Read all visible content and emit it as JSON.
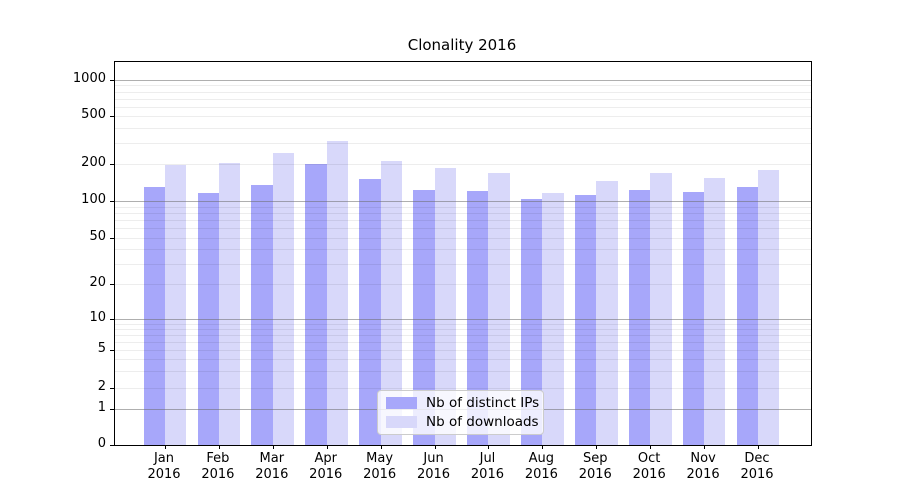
{
  "chart_data": {
    "type": "bar",
    "title": "Clonality 2016",
    "categories": [
      "Jan",
      "Feb",
      "Mar",
      "Apr",
      "May",
      "Jun",
      "Jul",
      "Aug",
      "Sep",
      "Oct",
      "Nov",
      "Dec"
    ],
    "category_year": "2016",
    "series": [
      {
        "name": "Nb of distinct IPs",
        "color": "#a7a7fa",
        "values": [
          130,
          117,
          135,
          199,
          151,
          124,
          121,
          103,
          111,
          122,
          118,
          129
        ]
      },
      {
        "name": "Nb of downloads",
        "color": "#d8d8fa",
        "values": [
          196,
          205,
          248,
          310,
          211,
          185,
          170,
          117,
          145,
          170,
          154,
          179
        ]
      }
    ],
    "xlabel": "",
    "ylabel": "",
    "yscale": "symlog",
    "y_tick_values": [
      0,
      1,
      2,
      5,
      10,
      20,
      50,
      100,
      200,
      500,
      1000
    ],
    "y_tick_labels": [
      "0",
      "1",
      "2",
      "5",
      "10",
      "20",
      "50",
      "100",
      "200",
      "500",
      "1000"
    ],
    "ylim": [
      0,
      1400
    ],
    "grid": true,
    "legend_position": "lower-center"
  }
}
